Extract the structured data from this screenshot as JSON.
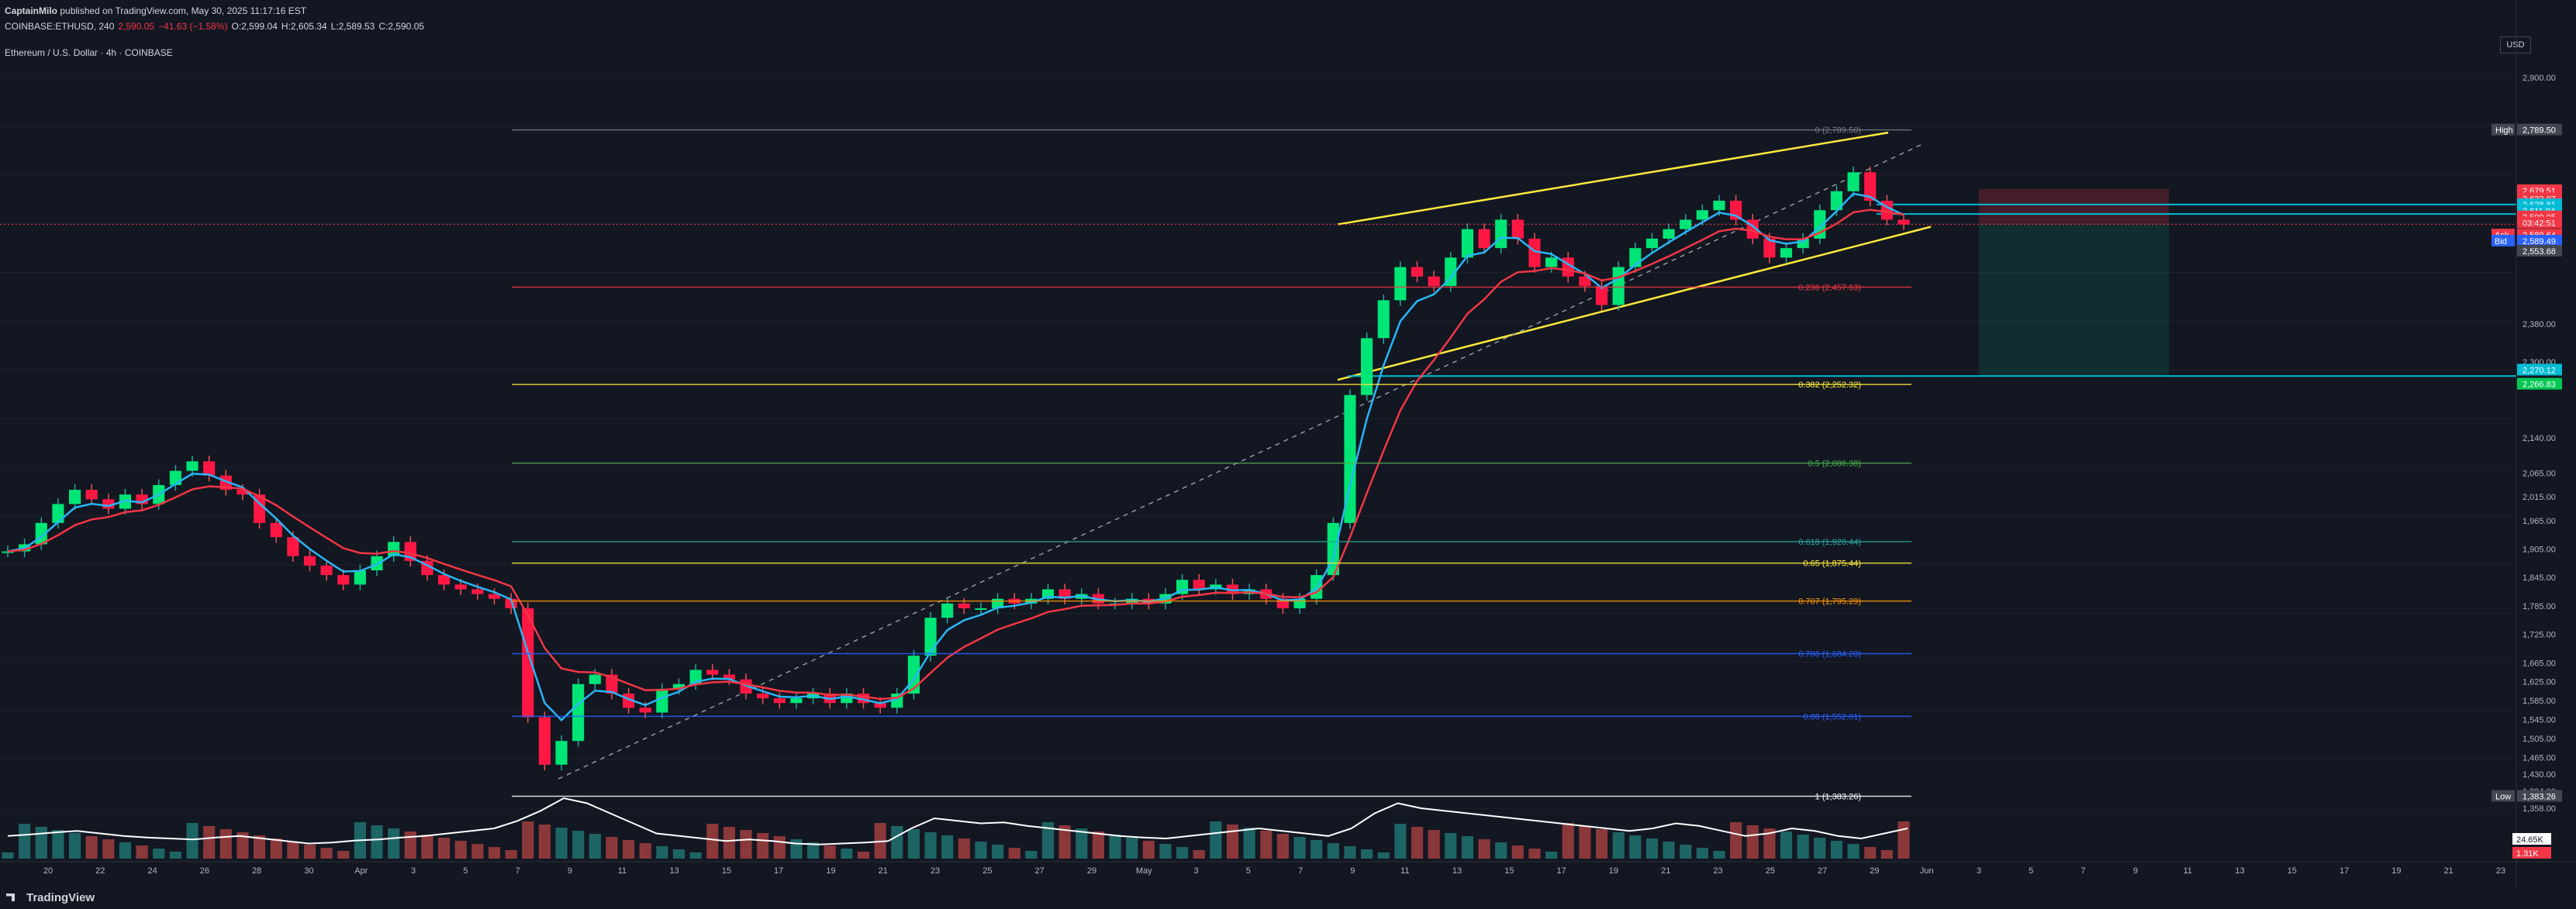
{
  "header": {
    "publisher": "CaptainMilo",
    "published_text": "published on TradingView.com, May 30, 2025 11:17:16 EST",
    "symbol": "COINBASE:ETHUSD, 240",
    "last": "2,590.05",
    "change": "−41.63 (−1.58%)",
    "open": "O:2,599.04",
    "high": "H:2,605.34",
    "low": "L:2,589.53",
    "close": "C:2,590.05"
  },
  "chart_title": "Ethereum / U.S. Dollar · 4h · COINBASE",
  "currency": "USD",
  "footer_brand": "TradingView",
  "colors": {
    "background": "#131722",
    "up": "#26a69a",
    "down": "#ef5350",
    "ema_fast": "#2962ff",
    "ema_slow": "#f23645",
    "channel": "#ffeb3b"
  },
  "chart_data": {
    "type": "candlestick",
    "price_axis_labels": [
      "2,900.00",
      "2,789.50",
      "2,679.51",
      "2,632.07",
      "2,628.81",
      "2,611.94",
      "2,590.05",
      "03:42:51",
      "2,589.64",
      "2,589.49",
      "2,553.68",
      "2,380.00",
      "2,300.00",
      "2,270.12",
      "2,266.83",
      "2,140.00",
      "2,065.00",
      "2,015.00",
      "1,965.00",
      "1,905.00",
      "1,845.00",
      "1,785.00",
      "1,725.00",
      "1,665.00",
      "1,625.00",
      "1,585.00",
      "1,545.00",
      "1,505.00",
      "1,465.00",
      "1,430.00",
      "1,394.00",
      "1,383.26",
      "1,358.00"
    ],
    "x_tick_labels": [
      "20",
      "22",
      "24",
      "26",
      "28",
      "30",
      "Apr",
      "3",
      "5",
      "7",
      "9",
      "11",
      "13",
      "15",
      "17",
      "19",
      "21",
      "23",
      "25",
      "27",
      "29",
      "May",
      "3",
      "5",
      "7",
      "9",
      "11",
      "13",
      "15",
      "17",
      "19",
      "21",
      "23",
      "25",
      "27",
      "29",
      "Jun",
      "3",
      "5",
      "7",
      "9",
      "11",
      "13",
      "15",
      "17",
      "19",
      "21",
      "23"
    ],
    "fibonacci": [
      {
        "level": "0",
        "price": "2,789.50",
        "label": "0 (2,789.50)"
      },
      {
        "level": "0.236",
        "price": "2,457.63",
        "label": "0.236 (2,457.63)"
      },
      {
        "level": "0.382",
        "price": "2,252.32",
        "label": "0.382 (2,252.32)"
      },
      {
        "level": "0.5",
        "price": "2,086.38",
        "label": "0.5 (2,086.38)"
      },
      {
        "level": "0.618",
        "price": "1,920.44",
        "label": "0.618 (1,920.44)"
      },
      {
        "level": "0.65",
        "price": "1,875.44",
        "label": "0.65 (1,875.44)"
      },
      {
        "level": "0.707",
        "price": "1,795.29",
        "label": "0.707 (1,795.29)"
      },
      {
        "level": "0.786",
        "price": "1,684.20",
        "label": "0.786 (1,684.20)"
      },
      {
        "level": "0.88",
        "price": "1,552.01",
        "label": "0.88 (1,552.01)"
      },
      {
        "level": "1",
        "price": "1,383.26",
        "label": "1 (1,383.26)"
      }
    ],
    "tags": {
      "high_label": "High",
      "high_value": "2,789.50",
      "low_label": "Low",
      "low_value": "1,383.26",
      "ask_label": "Ask",
      "ask_value": "2,589.64",
      "bid_label": "Bid",
      "bid_value": "2,589.49",
      "last_price": "2,590.05",
      "countdown": "03:42:51",
      "ema_a": "2,679.51",
      "ema_b": "2,632.07",
      "line_a": "2,628.81",
      "line_b": "2,611.94",
      "vwap": "2,553.68",
      "target_a": "2,270.12",
      "target_b": "2,266.83"
    },
    "volume_tags": {
      "volume": "24.65K",
      "volume_ma": "1.31K"
    },
    "closes": [
      1900,
      1915,
      1960,
      2000,
      2030,
      2010,
      1990,
      2020,
      2000,
      2040,
      2070,
      2090,
      2060,
      2030,
      2020,
      1960,
      1930,
      1890,
      1870,
      1850,
      1830,
      1860,
      1890,
      1920,
      1880,
      1850,
      1830,
      1820,
      1810,
      1800,
      1780,
      1550,
      1450,
      1500,
      1620,
      1640,
      1600,
      1570,
      1560,
      1610,
      1620,
      1650,
      1640,
      1630,
      1600,
      1590,
      1580,
      1590,
      1600,
      1580,
      1600,
      1580,
      1570,
      1600,
      1680,
      1760,
      1790,
      1780,
      1780,
      1800,
      1790,
      1800,
      1820,
      1800,
      1810,
      1790,
      1790,
      1800,
      1790,
      1810,
      1840,
      1820,
      1830,
      1810,
      1820,
      1800,
      1780,
      1800,
      1850,
      1960,
      2230,
      2350,
      2430,
      2500,
      2480,
      2460,
      2520,
      2580,
      2540,
      2600,
      2560,
      2500,
      2520,
      2480,
      2460,
      2420,
      2500,
      2540,
      2560,
      2580,
      2600,
      2620,
      2640,
      2600,
      2560,
      2520,
      2540,
      2560,
      2620,
      2660,
      2700,
      2640,
      2600,
      2590
    ],
    "volume_ma_series": [
      0.45,
      0.48,
      0.52,
      0.55,
      0.5,
      0.45,
      0.42,
      0.4,
      0.38,
      0.42,
      0.45,
      0.4,
      0.35,
      0.3,
      0.32,
      0.36,
      0.38,
      0.42,
      0.45,
      0.5,
      0.55,
      0.6,
      0.75,
      0.95,
      1.2,
      1.1,
      0.9,
      0.7,
      0.5,
      0.45,
      0.4,
      0.35,
      0.38,
      0.35,
      0.3,
      0.28,
      0.3,
      0.32,
      0.35,
      0.6,
      0.8,
      0.75,
      0.7,
      0.72,
      0.65,
      0.6,
      0.55,
      0.5,
      0.45,
      0.42,
      0.4,
      0.45,
      0.5,
      0.55,
      0.6,
      0.55,
      0.5,
      0.45,
      0.6,
      0.9,
      1.1,
      1.0,
      0.95,
      0.9,
      0.85,
      0.8,
      0.75,
      0.7,
      0.65,
      0.6,
      0.55,
      0.6,
      0.7,
      0.65,
      0.55,
      0.45,
      0.5,
      0.6,
      0.55,
      0.45,
      0.4,
      0.5,
      0.6
    ]
  }
}
